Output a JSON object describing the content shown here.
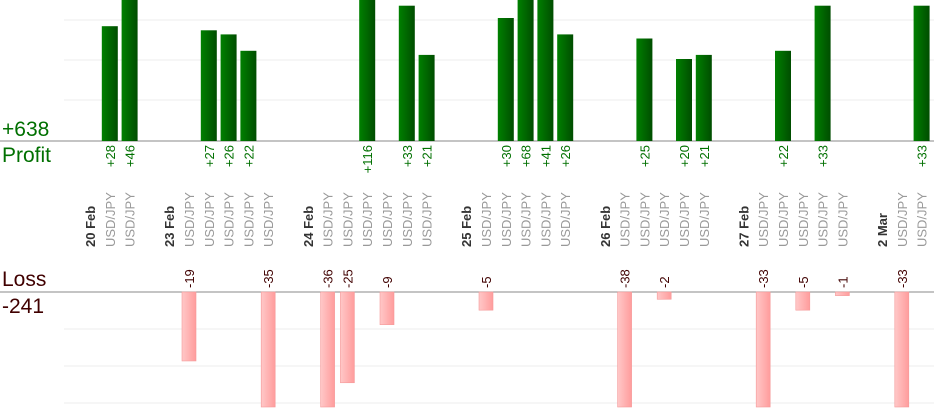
{
  "chart_data": {
    "type": "bar",
    "title": "",
    "profit_total": "+638",
    "profit_label": "Profit",
    "loss_label": "Loss",
    "loss_total": "-241",
    "colors": {
      "profit": "#006400",
      "loss": "#ffb0b0",
      "profit_text": "#007000",
      "loss_text": "#400000",
      "date_text": "#333333",
      "symbol_text": "#999999"
    },
    "columns": [
      {
        "date": "20 Feb"
      },
      {
        "symbol": "USD/JPY",
        "value": 28
      },
      {
        "symbol": "USD/JPY",
        "value": 46
      },
      {},
      {
        "date": "23 Feb"
      },
      {
        "symbol": "USD/JPY",
        "value": -19
      },
      {
        "symbol": "USD/JPY",
        "value": 27
      },
      {
        "symbol": "USD/JPY",
        "value": 26
      },
      {
        "symbol": "USD/JPY",
        "value": 22
      },
      {
        "symbol": "USD/JPY",
        "value": -35
      },
      {},
      {
        "date": "24 Feb"
      },
      {
        "symbol": "USD/JPY",
        "value": -36
      },
      {
        "symbol": "USD/JPY",
        "value": -25
      },
      {
        "symbol": "USD/JPY",
        "value": 116
      },
      {
        "symbol": "USD/JPY",
        "value": -9
      },
      {
        "symbol": "USD/JPY",
        "value": 33
      },
      {
        "symbol": "USD/JPY",
        "value": 21
      },
      {},
      {
        "date": "25 Feb"
      },
      {
        "symbol": "USD/JPY",
        "value": -5
      },
      {
        "symbol": "USD/JPY",
        "value": 30
      },
      {
        "symbol": "USD/JPY",
        "value": 68
      },
      {
        "symbol": "USD/JPY",
        "value": 41
      },
      {
        "symbol": "USD/JPY",
        "value": 26
      },
      {},
      {
        "date": "26 Feb"
      },
      {
        "symbol": "USD/JPY",
        "value": -38
      },
      {
        "symbol": "USD/JPY",
        "value": 25
      },
      {
        "symbol": "USD/JPY",
        "value": -2
      },
      {
        "symbol": "USD/JPY",
        "value": 20
      },
      {
        "symbol": "USD/JPY",
        "value": 21
      },
      {},
      {
        "date": "27 Feb"
      },
      {
        "symbol": "USD/JPY",
        "value": -33
      },
      {
        "symbol": "USD/JPY",
        "value": 22
      },
      {
        "symbol": "USD/JPY",
        "value": -5
      },
      {
        "symbol": "USD/JPY",
        "value": 33
      },
      {
        "symbol": "USD/JPY",
        "value": -1
      },
      {},
      {
        "date": "2 Mar"
      },
      {
        "symbol": "USD/JPY",
        "value": -33
      },
      {
        "symbol": "USD/JPY",
        "value": 33
      }
    ]
  }
}
